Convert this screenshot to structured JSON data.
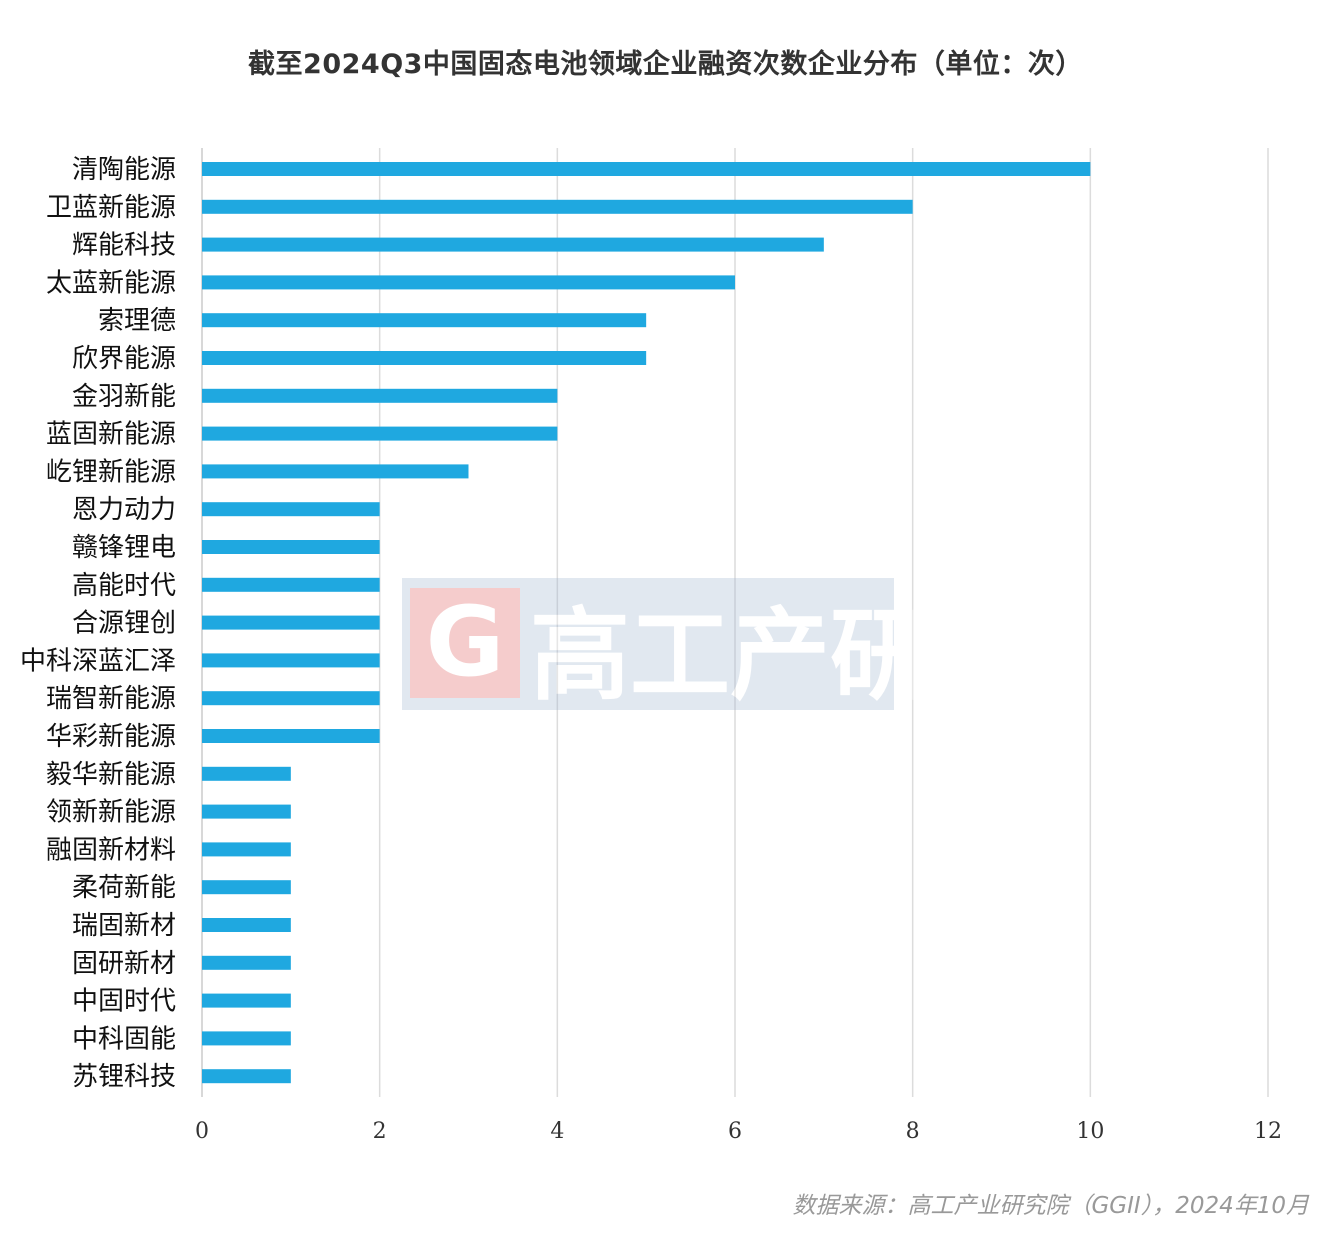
{
  "chart_data": {
    "type": "bar",
    "orientation": "horizontal",
    "title": "截至2024Q3中国固态电池领域企业融资次数企业分布（单位：次）",
    "categories": [
      "清陶能源",
      "卫蓝新能源",
      "辉能科技",
      "太蓝新能源",
      "索理德",
      "欣界能源",
      "金羽新能",
      "蓝固新能源",
      "屹锂新能源",
      "恩力动力",
      "赣锋锂电",
      "高能时代",
      "合源锂创",
      "中科深蓝汇泽",
      "瑞智新能源",
      "华彩新能源",
      "毅华新能源",
      "领新新能源",
      "融固新材料",
      "柔荷新能",
      "瑞固新材",
      "固研新材",
      "中固时代",
      "中科固能",
      "苏锂科技"
    ],
    "values": [
      10,
      8,
      7,
      6,
      5,
      5,
      4,
      4,
      3,
      2,
      2,
      2,
      2,
      2,
      2,
      2,
      1,
      1,
      1,
      1,
      1,
      1,
      1,
      1,
      1
    ],
    "xlim": [
      0,
      12
    ],
    "xticks": [
      "0",
      "2",
      "4",
      "6",
      "8",
      "10",
      "12"
    ],
    "grid": "vertical",
    "bar_color": "#1fa8e0",
    "source": "数据来源：高工产业研究院（GGII），2024年10月"
  },
  "watermark": "G高工产研"
}
